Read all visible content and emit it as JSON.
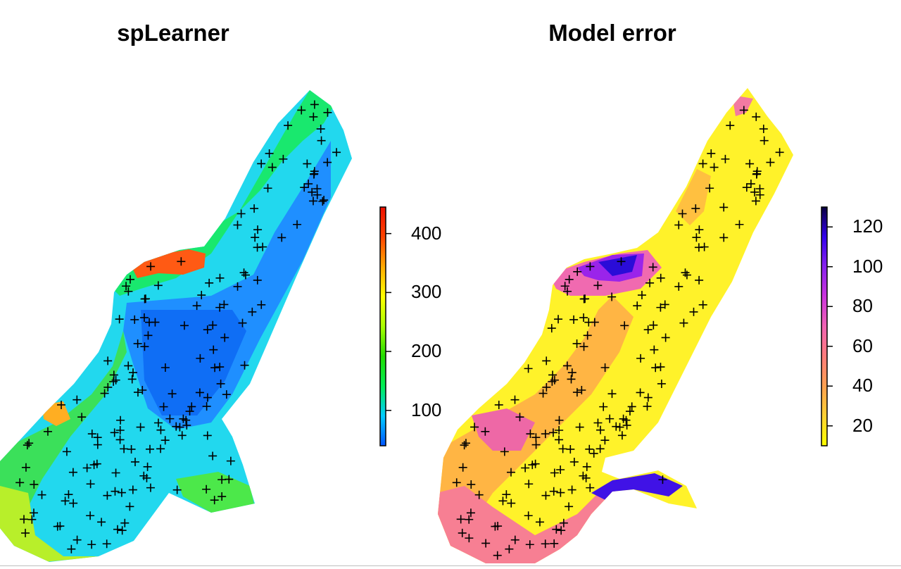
{
  "panels": [
    {
      "title": "spLearner",
      "legend": {
        "ticks": [
          100,
          200,
          300,
          400
        ],
        "range": [
          40,
          445
        ],
        "colors": [
          "#0055ff",
          "#00ccff",
          "#00ee55",
          "#22dd00",
          "#aaff00",
          "#ffff00",
          "#ffaa00",
          "#ff4400",
          "#ee1100"
        ]
      }
    },
    {
      "title": "Model error",
      "legend": {
        "ticks": [
          20,
          40,
          60,
          80,
          100,
          120
        ],
        "range": [
          10,
          130
        ],
        "colors": [
          "#ffff00",
          "#ffd133",
          "#ffa050",
          "#ff7c7c",
          "#f063b3",
          "#cc33dd",
          "#8822ee",
          "#3300ee",
          "#0a0040"
        ]
      }
    }
  ],
  "icons": {
    "sample_marker": "plus-marker"
  }
}
